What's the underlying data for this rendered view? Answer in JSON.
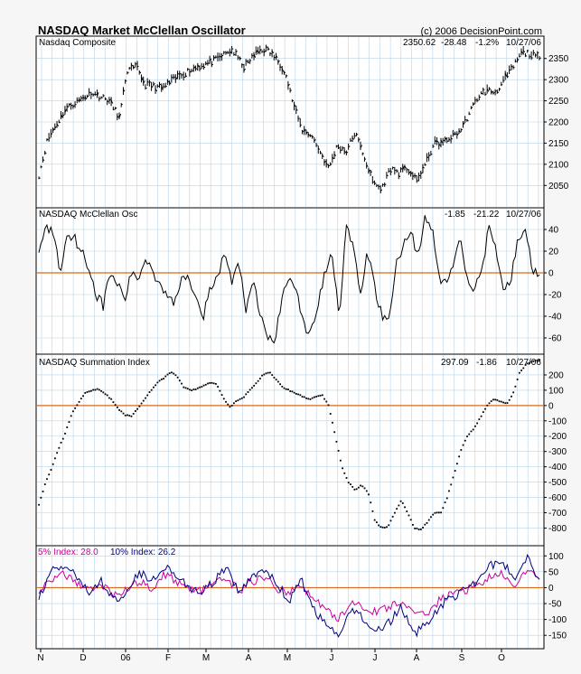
{
  "title": "NASDAQ Market McClellan Oscillator",
  "copyright": "(c) 2006 DecisionPoint.com",
  "x_ticks": [
    "N",
    "D",
    "06",
    "F",
    "M",
    "A",
    "M",
    "J",
    "J",
    "A",
    "S",
    "O"
  ],
  "colors": {
    "background": "#f6f6f6",
    "panel": "#ffffff",
    "grid": "#b8d3e6",
    "zero_line": "#d96a1e",
    "price": "#000000",
    "five_pct": "#cc0099",
    "ten_pct": "#000080"
  },
  "chart_data": [
    {
      "type": "ohlc",
      "name": "Nasdaq Composite",
      "label": "Nasdaq Composite",
      "info": [
        "2350.62",
        "-28.48",
        "-1.2%",
        "10/27/06"
      ],
      "ylim": [
        2010,
        2390
      ],
      "yticks": [
        2050,
        2100,
        2150,
        2200,
        2250,
        2300,
        2350
      ],
      "keypoints": [
        [
          0,
          2075
        ],
        [
          5,
          2160
        ],
        [
          15,
          2230
        ],
        [
          30,
          2270
        ],
        [
          40,
          2250
        ],
        [
          46,
          2210
        ],
        [
          50,
          2320
        ],
        [
          56,
          2330
        ],
        [
          60,
          2290
        ],
        [
          70,
          2280
        ],
        [
          80,
          2310
        ],
        [
          90,
          2330
        ],
        [
          100,
          2345
        ],
        [
          110,
          2370
        ],
        [
          117,
          2330
        ],
        [
          125,
          2370
        ],
        [
          130,
          2370
        ],
        [
          135,
          2350
        ],
        [
          140,
          2320
        ],
        [
          145,
          2240
        ],
        [
          150,
          2180
        ],
        [
          155,
          2170
        ],
        [
          165,
          2090
        ],
        [
          170,
          2145
        ],
        [
          175,
          2130
        ],
        [
          180,
          2175
        ],
        [
          185,
          2120
        ],
        [
          190,
          2060
        ],
        [
          195,
          2040
        ],
        [
          200,
          2090
        ],
        [
          205,
          2080
        ],
        [
          210,
          2090
        ],
        [
          215,
          2060
        ],
        [
          220,
          2100
        ],
        [
          225,
          2150
        ],
        [
          230,
          2150
        ],
        [
          240,
          2180
        ],
        [
          245,
          2220
        ],
        [
          250,
          2260
        ],
        [
          255,
          2275
        ],
        [
          260,
          2270
        ],
        [
          265,
          2300
        ],
        [
          270,
          2330
        ],
        [
          275,
          2365
        ],
        [
          280,
          2360
        ],
        [
          285,
          2350
        ]
      ],
      "last": 2350.62
    },
    {
      "type": "line",
      "name": "NASDAQ McClellan Osc",
      "label": "NASDAQ McClellan Osc",
      "info": [
        "-1.85",
        "-21.22",
        "10/27/06"
      ],
      "ylim": [
        -70,
        55
      ],
      "yticks": [
        40,
        20,
        0,
        -20,
        -40,
        -60
      ],
      "keypoints": [
        [
          0,
          20
        ],
        [
          5,
          42
        ],
        [
          10,
          38
        ],
        [
          15,
          0
        ],
        [
          20,
          38
        ],
        [
          25,
          32
        ],
        [
          30,
          20
        ],
        [
          35,
          5
        ],
        [
          40,
          -20
        ],
        [
          45,
          -30
        ],
        [
          50,
          0
        ],
        [
          55,
          -10
        ],
        [
          60,
          -25
        ],
        [
          65,
          0
        ],
        [
          70,
          -5
        ],
        [
          75,
          15
        ],
        [
          80,
          0
        ],
        [
          85,
          -10
        ],
        [
          90,
          -20
        ],
        [
          95,
          -30
        ],
        [
          100,
          0
        ],
        [
          105,
          -5
        ],
        [
          110,
          -20
        ],
        [
          115,
          -40
        ],
        [
          120,
          -15
        ],
        [
          125,
          -5
        ],
        [
          130,
          20
        ],
        [
          135,
          -10
        ],
        [
          140,
          10
        ],
        [
          145,
          -35
        ],
        [
          150,
          -10
        ],
        [
          155,
          -40
        ],
        [
          160,
          -60
        ],
        [
          165,
          -62
        ],
        [
          170,
          -25
        ],
        [
          175,
          0
        ],
        [
          180,
          -15
        ],
        [
          185,
          -50
        ],
        [
          190,
          -55
        ],
        [
          195,
          -30
        ],
        [
          200,
          0
        ],
        [
          205,
          20
        ],
        [
          210,
          -40
        ],
        [
          215,
          45
        ],
        [
          220,
          20
        ],
        [
          225,
          -20
        ],
        [
          230,
          20
        ],
        [
          235,
          -15
        ],
        [
          240,
          -40
        ],
        [
          245,
          -45
        ],
        [
          250,
          10
        ],
        [
          255,
          25
        ],
        [
          260,
          40
        ],
        [
          265,
          15
        ],
        [
          270,
          50
        ],
        [
          275,
          40
        ],
        [
          280,
          -5
        ],
        [
          285,
          -10
        ],
        [
          290,
          10
        ],
        [
          295,
          30
        ],
        [
          300,
          -10
        ],
        [
          305,
          -15
        ],
        [
          310,
          5
        ],
        [
          315,
          45
        ],
        [
          320,
          20
        ],
        [
          325,
          -20
        ],
        [
          330,
          -5
        ],
        [
          335,
          30
        ],
        [
          340,
          45
        ],
        [
          345,
          0
        ],
        [
          350,
          -2
        ]
      ],
      "last": -1.85
    },
    {
      "type": "scatter",
      "name": "NASDAQ Summation Index",
      "label": "NASDAQ Summation Index",
      "info": [
        "297.09",
        "-1.86",
        "10/27/06"
      ],
      "ylim": [
        -880,
        300
      ],
      "yticks": [
        200,
        100,
        0,
        -100,
        -200,
        -300,
        -400,
        -500,
        -600,
        -700,
        -800
      ],
      "keypoints": [
        [
          0,
          -650
        ],
        [
          5,
          -500
        ],
        [
          10,
          -400
        ],
        [
          15,
          -280
        ],
        [
          20,
          -180
        ],
        [
          25,
          -50
        ],
        [
          30,
          20
        ],
        [
          35,
          80
        ],
        [
          40,
          100
        ],
        [
          45,
          110
        ],
        [
          50,
          80
        ],
        [
          55,
          40
        ],
        [
          60,
          -20
        ],
        [
          65,
          -60
        ],
        [
          70,
          -70
        ],
        [
          75,
          -20
        ],
        [
          80,
          40
        ],
        [
          85,
          100
        ],
        [
          90,
          150
        ],
        [
          95,
          180
        ],
        [
          100,
          220
        ],
        [
          105,
          190
        ],
        [
          110,
          120
        ],
        [
          115,
          100
        ],
        [
          120,
          110
        ],
        [
          125,
          130
        ],
        [
          130,
          150
        ],
        [
          135,
          140
        ],
        [
          140,
          50
        ],
        [
          145,
          -10
        ],
        [
          150,
          30
        ],
        [
          155,
          50
        ],
        [
          160,
          100
        ],
        [
          165,
          150
        ],
        [
          170,
          200
        ],
        [
          175,
          220
        ],
        [
          180,
          170
        ],
        [
          185,
          120
        ],
        [
          190,
          100
        ],
        [
          195,
          80
        ],
        [
          200,
          60
        ],
        [
          205,
          40
        ],
        [
          210,
          60
        ],
        [
          215,
          70
        ],
        [
          220,
          0
        ],
        [
          225,
          -200
        ],
        [
          230,
          -400
        ],
        [
          235,
          -500
        ],
        [
          240,
          -550
        ],
        [
          245,
          -520
        ],
        [
          250,
          -570
        ],
        [
          255,
          -750
        ],
        [
          260,
          -800
        ],
        [
          265,
          -790
        ],
        [
          270,
          -700
        ],
        [
          275,
          -620
        ],
        [
          280,
          -700
        ],
        [
          285,
          -800
        ],
        [
          290,
          -810
        ],
        [
          295,
          -760
        ],
        [
          300,
          -700
        ],
        [
          305,
          -700
        ],
        [
          310,
          -600
        ],
        [
          315,
          -450
        ],
        [
          320,
          -300
        ],
        [
          325,
          -200
        ],
        [
          330,
          -150
        ],
        [
          335,
          -80
        ],
        [
          340,
          0
        ],
        [
          345,
          40
        ],
        [
          350,
          30
        ],
        [
          355,
          10
        ],
        [
          360,
          80
        ],
        [
          365,
          220
        ],
        [
          370,
          270
        ],
        [
          375,
          290
        ],
        [
          380,
          297
        ]
      ],
      "last": 297.09
    },
    {
      "type": "line",
      "name": "5% / 10% Index",
      "legend": [
        {
          "label": "5% Index: 28.0",
          "color": "#cc0099"
        },
        {
          "label": "10% Index: 26.2",
          "color": "#000080"
        }
      ],
      "ylim": [
        -175,
        115
      ],
      "yticks": [
        100,
        50,
        0,
        -50,
        -100,
        -150
      ],
      "series": [
        {
          "name": "5% Index",
          "color": "#cc0099",
          "keypoints": [
            [
              0,
              -20
            ],
            [
              10,
              30
            ],
            [
              20,
              40
            ],
            [
              30,
              20
            ],
            [
              40,
              -10
            ],
            [
              50,
              10
            ],
            [
              60,
              -20
            ],
            [
              70,
              -10
            ],
            [
              80,
              20
            ],
            [
              90,
              0
            ],
            [
              100,
              40
            ],
            [
              110,
              20
            ],
            [
              120,
              0
            ],
            [
              130,
              -10
            ],
            [
              140,
              10
            ],
            [
              150,
              30
            ],
            [
              160,
              -10
            ],
            [
              170,
              20
            ],
            [
              180,
              30
            ],
            [
              190,
              0
            ],
            [
              200,
              -20
            ],
            [
              210,
              10
            ],
            [
              220,
              -40
            ],
            [
              230,
              -70
            ],
            [
              240,
              -100
            ],
            [
              250,
              -40
            ],
            [
              260,
              -60
            ],
            [
              270,
              -80
            ],
            [
              280,
              -60
            ],
            [
              290,
              -40
            ],
            [
              300,
              -90
            ],
            [
              310,
              -80
            ],
            [
              320,
              -40
            ],
            [
              330,
              -20
            ],
            [
              340,
              -10
            ],
            [
              350,
              10
            ],
            [
              360,
              30
            ],
            [
              370,
              40
            ],
            [
              380,
              10
            ],
            [
              390,
              50
            ],
            [
              400,
              28
            ]
          ]
        },
        {
          "name": "10% Index",
          "color": "#000080",
          "keypoints": [
            [
              0,
              -30
            ],
            [
              10,
              50
            ],
            [
              20,
              65
            ],
            [
              30,
              40
            ],
            [
              40,
              -20
            ],
            [
              50,
              20
            ],
            [
              60,
              -40
            ],
            [
              70,
              -10
            ],
            [
              80,
              50
            ],
            [
              90,
              20
            ],
            [
              100,
              70
            ],
            [
              110,
              40
            ],
            [
              120,
              0
            ],
            [
              130,
              -20
            ],
            [
              140,
              20
            ],
            [
              150,
              60
            ],
            [
              160,
              -20
            ],
            [
              170,
              40
            ],
            [
              180,
              60
            ],
            [
              190,
              10
            ],
            [
              200,
              -40
            ],
            [
              210,
              20
            ],
            [
              220,
              -70
            ],
            [
              230,
              -120
            ],
            [
              240,
              -160
            ],
            [
              250,
              -60
            ],
            [
              260,
              -100
            ],
            [
              270,
              -140
            ],
            [
              280,
              -110
            ],
            [
              290,
              -60
            ],
            [
              300,
              -150
            ],
            [
              310,
              -110
            ],
            [
              320,
              -60
            ],
            [
              330,
              -30
            ],
            [
              340,
              -10
            ],
            [
              350,
              20
            ],
            [
              360,
              70
            ],
            [
              370,
              80
            ],
            [
              380,
              30
            ],
            [
              390,
              100
            ],
            [
              400,
              26
            ]
          ]
        }
      ]
    }
  ]
}
